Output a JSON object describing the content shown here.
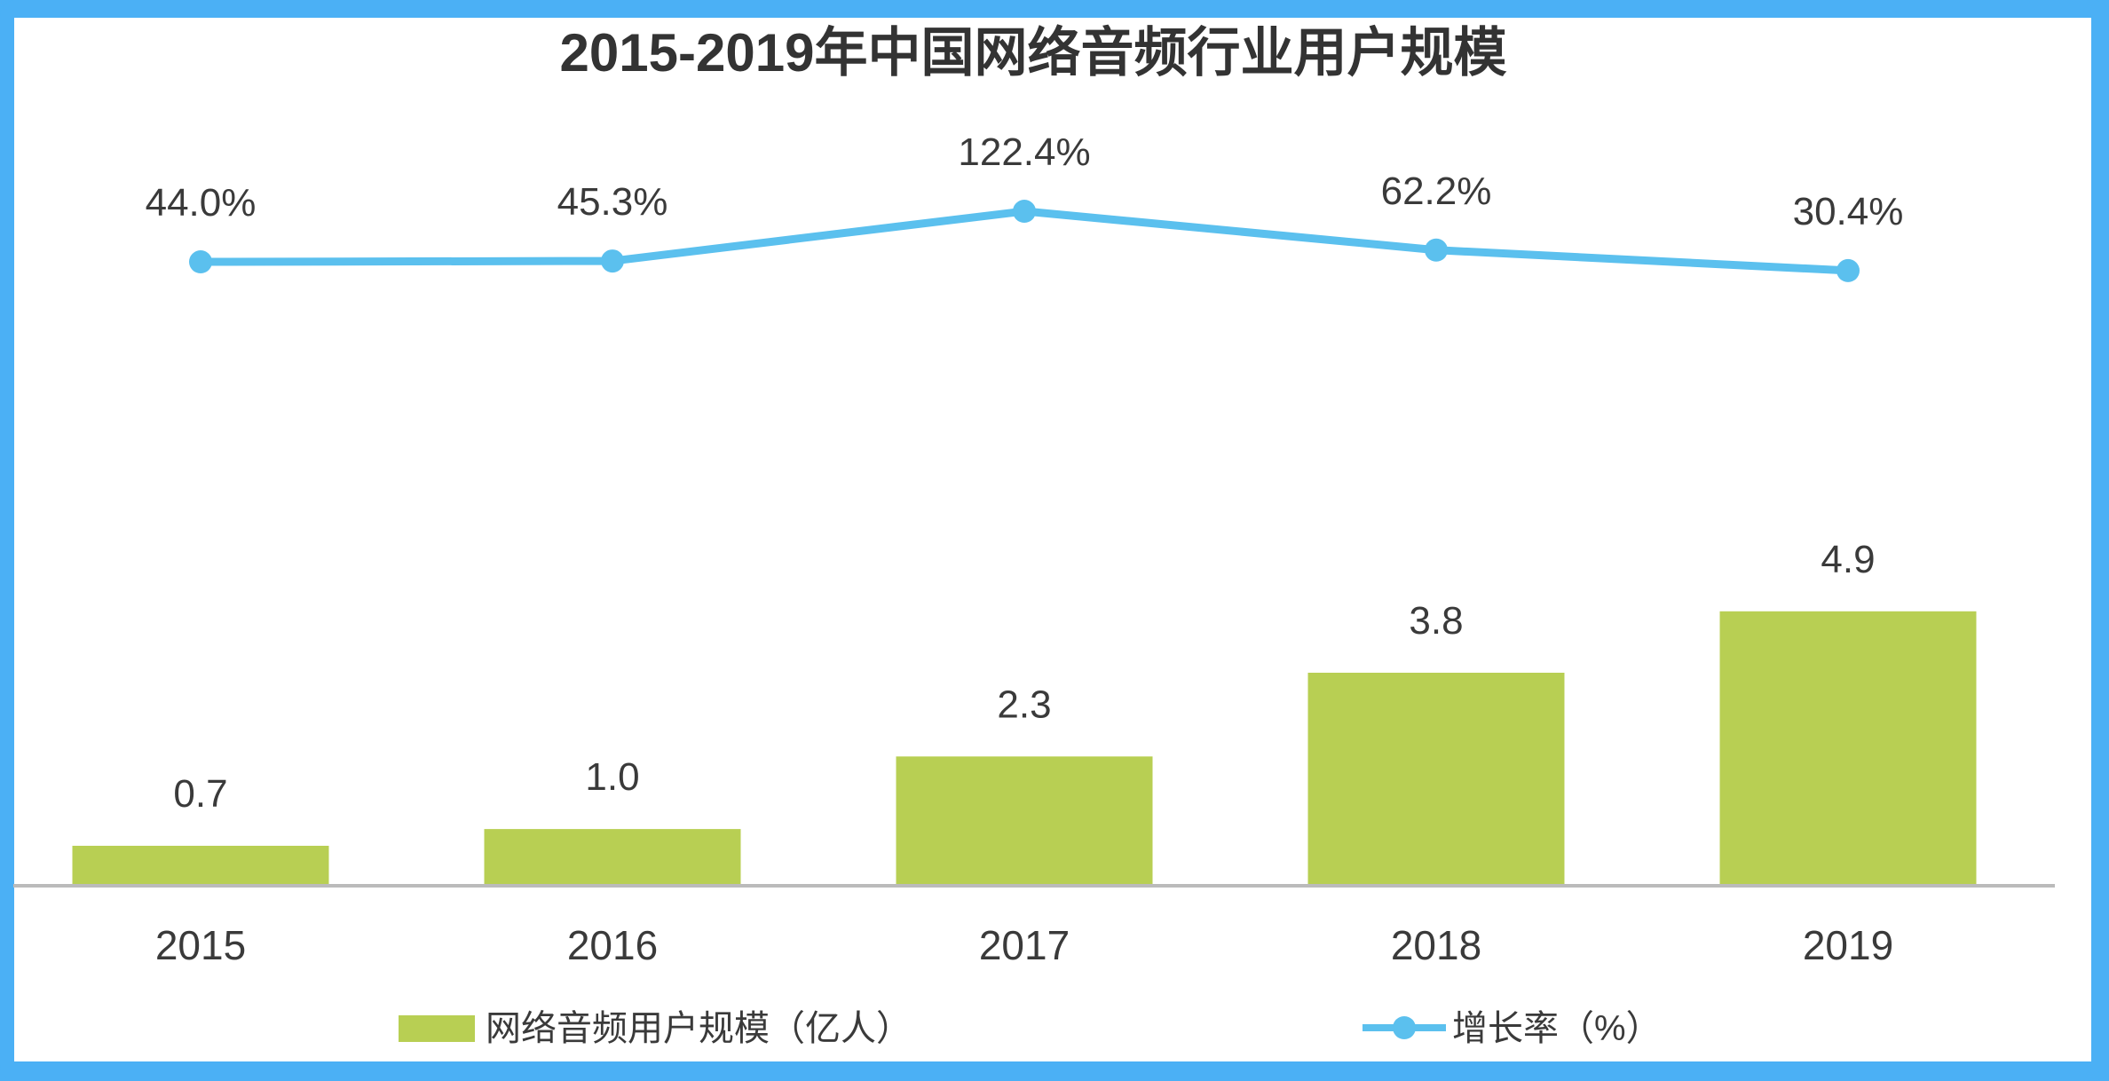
{
  "chart_data": {
    "type": "bar",
    "title": "2015-2019年中国网络音频行业用户规模",
    "xlabel": "",
    "ylabel": "",
    "categories": [
      "2015",
      "2016",
      "2017",
      "2018",
      "2019"
    ],
    "series": [
      {
        "name": "网络音频用户规模（亿人）",
        "type": "bar",
        "values": [
          0.7,
          1.0,
          2.3,
          3.8,
          4.9
        ],
        "labels": [
          "0.7",
          "1.0",
          "2.3",
          "3.8",
          "4.9"
        ],
        "color": "#B8CF53"
      },
      {
        "name": "增长率（%）",
        "type": "line",
        "values": [
          44.0,
          45.3,
          122.4,
          62.2,
          30.4
        ],
        "labels": [
          "44.0%",
          "45.3%",
          "122.4%",
          "62.2%",
          "30.4%"
        ],
        "color": "#5BC0EE"
      }
    ],
    "grid": false,
    "legend_position": "bottom"
  },
  "colors": {
    "frame": "#4BB0F5",
    "axis": "#BBBBBB"
  }
}
